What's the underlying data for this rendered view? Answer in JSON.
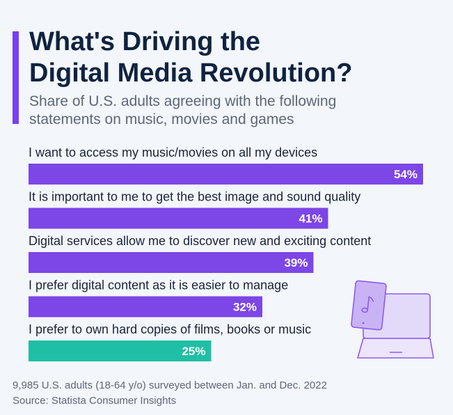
{
  "title": "What's Driving the\nDigital Media Revolution?",
  "subtitle": "Share of U.S. adults agreeing with the following\nstatements on music, movies and games",
  "colors": {
    "accent": "#7a3ff0",
    "bar_primary": "#7d46e6",
    "bar_highlight": "#1fbfa6",
    "title": "#0f2340"
  },
  "chart_data": {
    "type": "bar",
    "orientation": "horizontal",
    "unit": "%",
    "xlim": [
      0,
      54
    ],
    "categories": [
      "I want to access my music/movies on all my devices",
      "It is important to me to get the best image and sound quality",
      "Digital services allow me to discover new and exciting content",
      "I prefer digital content as it is easier to manage",
      "I prefer to own hard copies of films, books or music"
    ],
    "values": [
      54,
      41,
      39,
      32,
      25
    ],
    "value_labels": [
      "54%",
      "41%",
      "39%",
      "32%",
      "25%"
    ],
    "highlight": [
      false,
      false,
      false,
      false,
      true
    ]
  },
  "illustration_icon": "tablet-laptop-music-icon",
  "footer": {
    "note": "9,985 U.S. adults (18-64 y/o) surveyed between Jan. and Dec. 2022",
    "source": "Source: Statista Consumer Insights"
  }
}
